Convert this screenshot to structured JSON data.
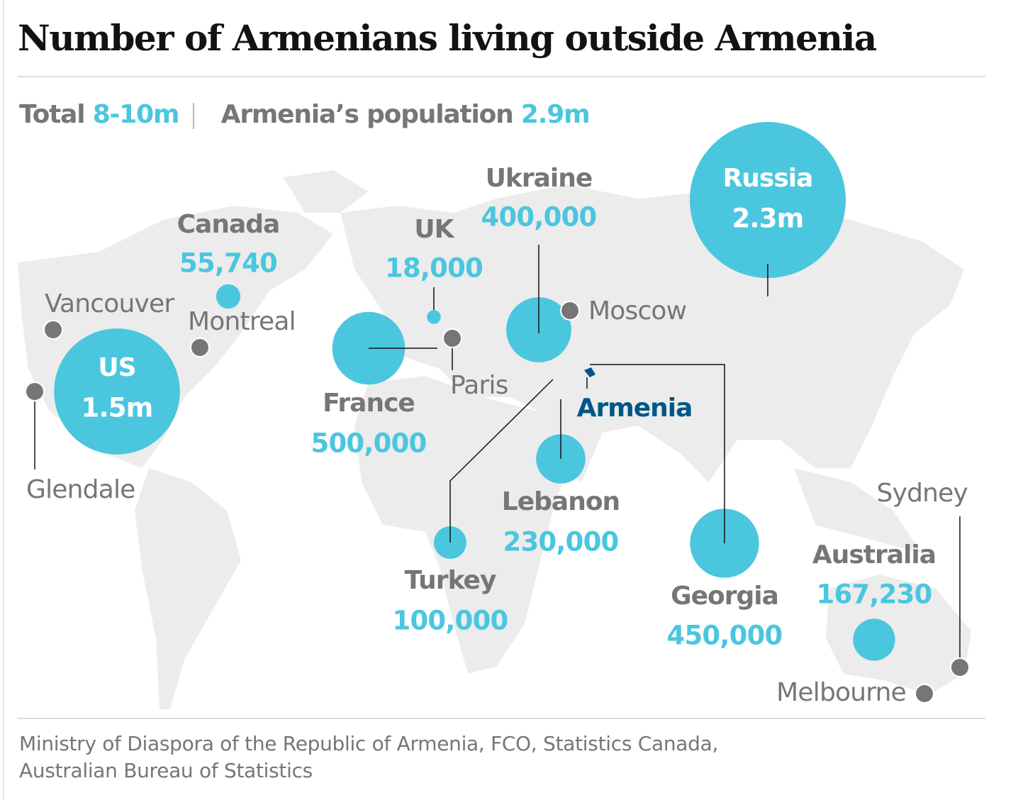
{
  "title": "Number of Armenians living outside Armenia",
  "summary": {
    "total_label": "Total",
    "total_value": "8-10m",
    "population_label": "Armenia’s population",
    "population_value": "2.9m"
  },
  "countries": [
    {
      "name": "US",
      "value": 1500000,
      "value_label": "1.5m"
    },
    {
      "name": "Russia",
      "value": 2300000,
      "value_label": "2.3m"
    },
    {
      "name": "Canada",
      "value": 55740,
      "value_label": "55,740"
    },
    {
      "name": "UK",
      "value": 18000,
      "value_label": "18,000"
    },
    {
      "name": "Ukraine",
      "value": 400000,
      "value_label": "400,000"
    },
    {
      "name": "France",
      "value": 500000,
      "value_label": "500,000"
    },
    {
      "name": "Lebanon",
      "value": 230000,
      "value_label": "230,000"
    },
    {
      "name": "Turkey",
      "value": 100000,
      "value_label": "100,000"
    },
    {
      "name": "Georgia",
      "value": 450000,
      "value_label": "450,000"
    },
    {
      "name": "Australia",
      "value": 167230,
      "value_label": "167,230"
    }
  ],
  "cities": [
    "Vancouver",
    "Montreal",
    "Glendale",
    "Paris",
    "Moscow",
    "Sydney",
    "Melbourne"
  ],
  "home_label": "Armenia",
  "source": [
    "Ministry of Diaspora of the Republic of Armenia, FCO, Statistics Canada,",
    "Australian Bureau of Statistics"
  ]
}
